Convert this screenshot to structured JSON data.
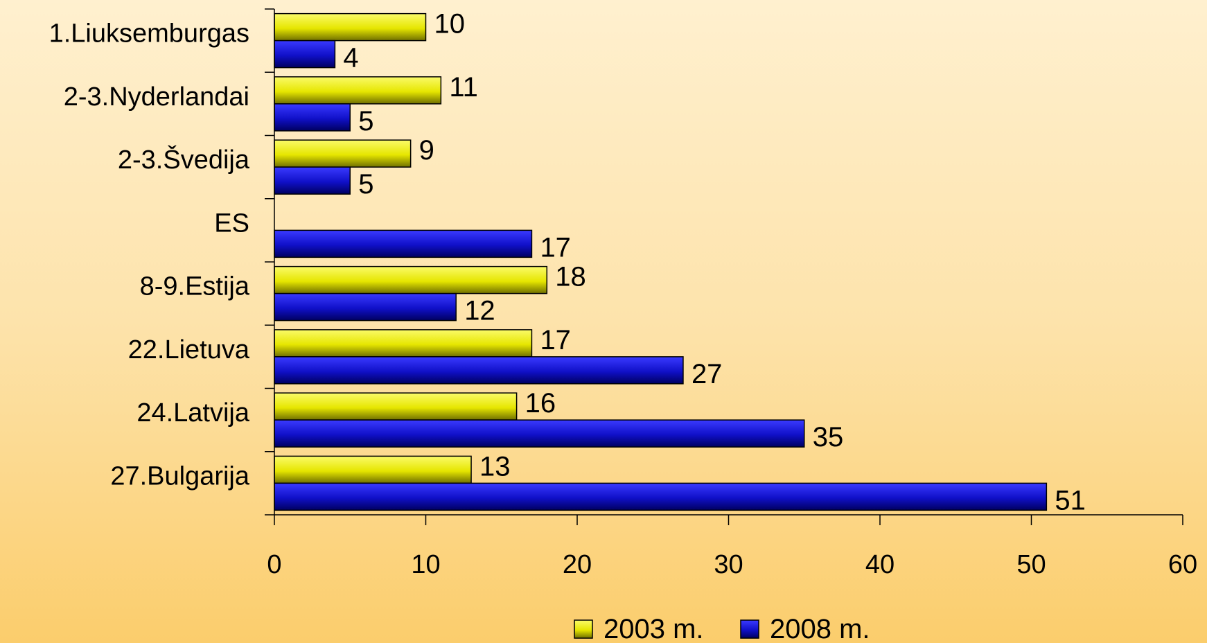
{
  "chart_data": {
    "type": "bar",
    "orientation": "horizontal",
    "categories": [
      "1.Liuksemburgas",
      "2-3.Nyderlandai",
      "2-3.Švedija",
      "ES",
      "8-9.Estija",
      "22.Lietuva",
      "24.Latvija",
      "27.Bulgarija"
    ],
    "series": [
      {
        "name": "2003 m.",
        "values": [
          10,
          11,
          9,
          null,
          18,
          17,
          16,
          13
        ],
        "color": "#f2f200"
      },
      {
        "name": "2008 m.",
        "values": [
          4,
          5,
          5,
          17,
          12,
          27,
          35,
          51
        ],
        "color": "#1414c8"
      }
    ],
    "xlim": [
      0,
      60
    ],
    "xticks": [
      "0",
      "10",
      "20",
      "30",
      "40",
      "50",
      "60"
    ],
    "grid": false,
    "legend_position": "bottom"
  }
}
